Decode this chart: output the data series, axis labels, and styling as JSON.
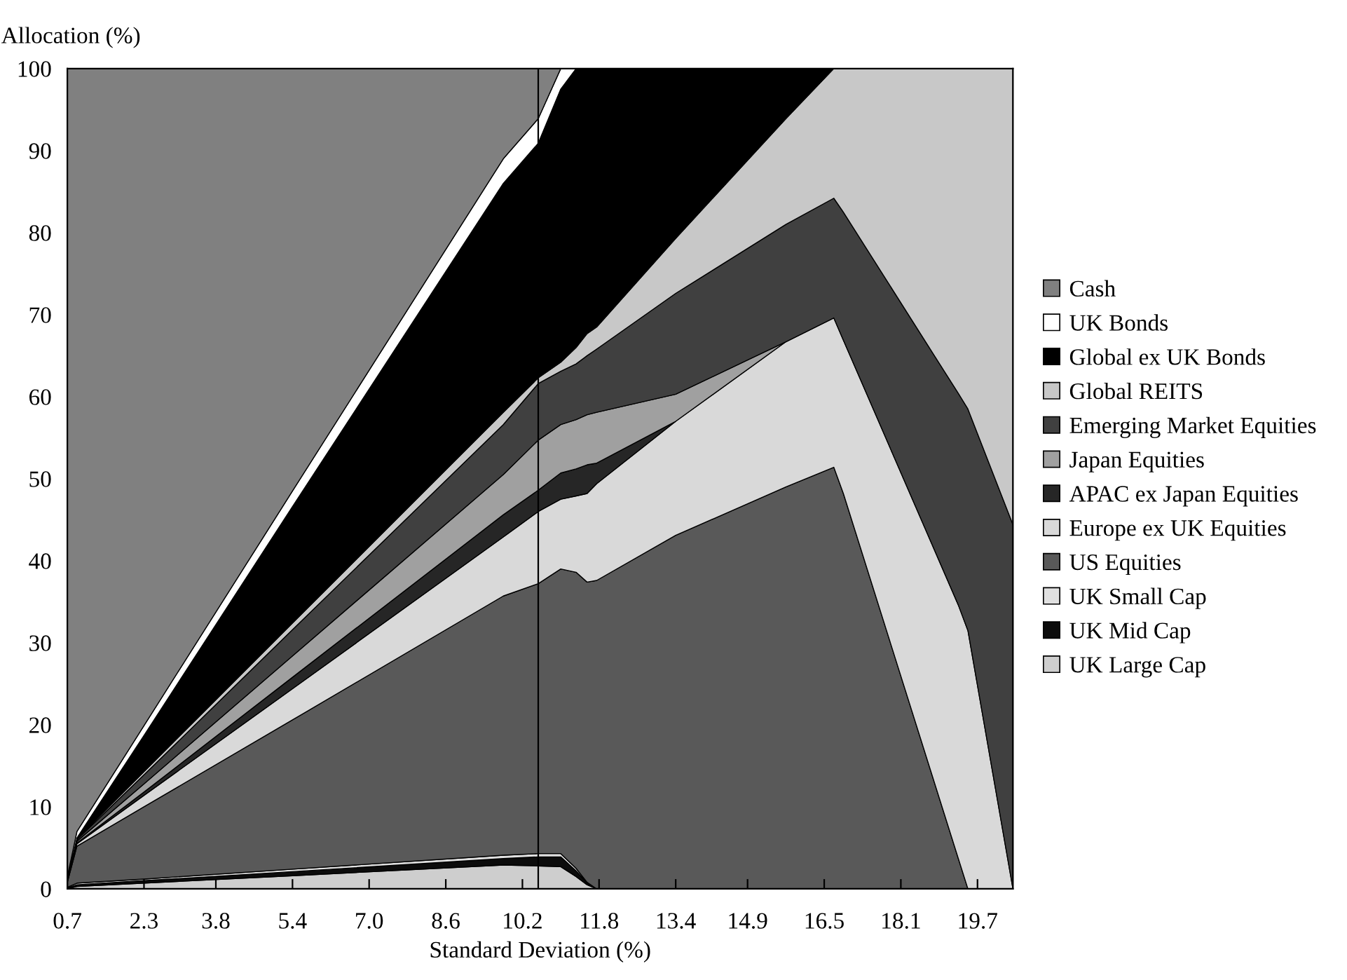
{
  "chart_data": {
    "type": "area",
    "stacked": true,
    "xlabel": "Standard Deviation (%)",
    "ylabel": "Allocation (%)",
    "x": [
      0.7,
      0.9,
      2.3,
      5.4,
      9.8,
      10.53,
      11.0,
      11.32,
      11.55,
      11.75,
      13.4,
      15.7,
      16.7,
      16.9,
      19.3,
      19.5,
      20.44
    ],
    "xlim": [
      0.7,
      20.44
    ],
    "xticks": [
      0.7,
      2.3,
      3.8,
      5.4,
      {
        "value": 7.0,
        "label": "7.0"
      },
      8.6,
      10.2,
      11.8,
      13.4,
      14.9,
      16.5,
      18.1,
      19.7
    ],
    "ylim": [
      0,
      100
    ],
    "yticks": [
      0,
      10,
      20,
      30,
      40,
      50,
      60,
      70,
      80,
      90,
      100
    ],
    "grid": false,
    "legend": "right",
    "ref_lines": [
      {
        "axis": "x",
        "value": 10.53,
        "color": "#000000"
      }
    ],
    "series": [
      {
        "name": "UK Large Cap",
        "color": "#cecece",
        "values": [
          0,
          0.3,
          0.7,
          1.6,
          2.9,
          2.8,
          2.7,
          1.5,
          0.5,
          0,
          0,
          0,
          0,
          0,
          0,
          0,
          0
        ]
      },
      {
        "name": "UK Mid Cap",
        "color": "#0c0c0c",
        "values": [
          0.1,
          0.2,
          0.3,
          0.5,
          0.8,
          1.1,
          1.2,
          0.7,
          0.2,
          0,
          0,
          0,
          0,
          0,
          0,
          0,
          0
        ]
      },
      {
        "name": "UK Small Cap",
        "color": "#e0e0e0",
        "values": [
          0.1,
          0.2,
          0.2,
          0.3,
          0.4,
          0.4,
          0.4,
          0.3,
          0.1,
          0,
          0,
          0,
          0,
          0,
          0,
          0,
          0
        ]
      },
      {
        "name": "US Equities",
        "color": "#595959",
        "values": [
          0.6,
          4.5,
          8.8,
          18.2,
          31.6,
          32.9,
          34.7,
          36.1,
          36.6,
          37.6,
          43.1,
          49.0,
          51.4,
          48.2,
          3.7,
          0,
          0
        ]
      },
      {
        "name": "Europe ex UK Equities",
        "color": "#d9d9d9",
        "values": [
          0.1,
          0.3,
          1.4,
          3.8,
          7.2,
          8.8,
          8.5,
          9.3,
          10.8,
          11.8,
          13.9,
          17.7,
          18.2,
          18.7,
          30.9,
          31.5,
          0
        ]
      },
      {
        "name": "APAC ex Japan Equities",
        "color": "#262626",
        "values": [
          0.1,
          0.1,
          0.4,
          1.4,
          2.7,
          2.6,
          3.2,
          3.3,
          3.5,
          2.5,
          0,
          null,
          null,
          null,
          null,
          null,
          null
        ]
      },
      {
        "name": "Japan Equities",
        "color": "#a0a0a0",
        "values": [
          0,
          0.2,
          1.0,
          2.6,
          4.9,
          6.1,
          5.9,
          6.0,
          6.1,
          6.2,
          3.3,
          0,
          null,
          null,
          null,
          null,
          null
        ]
      },
      {
        "name": "Emerging Market Equities",
        "color": "#404040",
        "values": [
          0.1,
          0.2,
          1.1,
          3.2,
          6.1,
          6.9,
          6.5,
          6.8,
          7.2,
          7.7,
          12.3,
          14.3,
          14.6,
          15.6,
          25.8,
          27.0,
          44.4
        ]
      },
      {
        "name": "Global REITS",
        "color": "#c8c8c8",
        "values": [
          0,
          0.1,
          0.4,
          0.8,
          1.5,
          0.7,
          1.1,
          2.0,
          2.7,
          2.7,
          6.7,
          12.9,
          15.8,
          17.5,
          39.6,
          41.5,
          55.6
        ]
      },
      {
        "name": "Global ex UK Bonds",
        "color": "#000000",
        "values": [
          0.1,
          0.1,
          4.4,
          14.2,
          27.9,
          28.6,
          33.3,
          34.0,
          32.3,
          31.5,
          20.7,
          6.1,
          0,
          null,
          null,
          null,
          null
        ]
      },
      {
        "name": "UK Bonds",
        "color": "#ffffff",
        "values": [
          0.3,
          0.8,
          1.2,
          1.9,
          3.0,
          3.0,
          2.5,
          0,
          null,
          null,
          null,
          null,
          null,
          null,
          null,
          null,
          null
        ]
      },
      {
        "name": "Cash",
        "color": "#808080",
        "values": [
          98.5,
          93.0,
          80.1,
          51.5,
          11.0,
          6.1,
          0,
          null,
          null,
          null,
          null,
          null,
          null,
          null,
          null,
          null,
          null
        ]
      }
    ]
  }
}
